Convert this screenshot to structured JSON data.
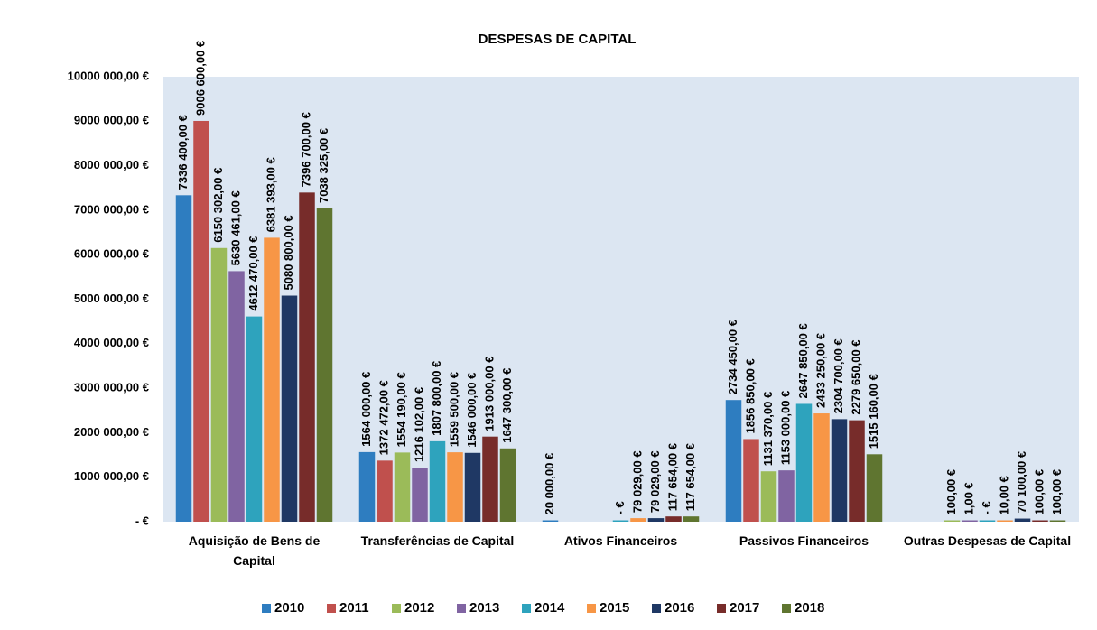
{
  "chart_data": {
    "type": "bar",
    "title": "DESPESAS DE CAPITAL",
    "categories": [
      "Aquisição de Bens de Capital",
      "Transferências de Capital",
      "Ativos Financeiros",
      "Passivos Financeiros",
      "Outras Despesas de Capital"
    ],
    "ylim": [
      0,
      10000000
    ],
    "yticks": [
      {
        "value": 0,
        "label": "- €"
      },
      {
        "value": 1000000,
        "label": "1000 000,00 €"
      },
      {
        "value": 2000000,
        "label": "2000 000,00 €"
      },
      {
        "value": 3000000,
        "label": "3000 000,00 €"
      },
      {
        "value": 4000000,
        "label": "4000 000,00 €"
      },
      {
        "value": 5000000,
        "label": "5000 000,00 €"
      },
      {
        "value": 6000000,
        "label": "6000 000,00 €"
      },
      {
        "value": 7000000,
        "label": "7000 000,00 €"
      },
      {
        "value": 8000000,
        "label": "8000 000,00 €"
      },
      {
        "value": 9000000,
        "label": "9000 000,00 €"
      },
      {
        "value": 10000000,
        "label": "10000 000,00 €"
      }
    ],
    "legend": "bottom",
    "series": [
      {
        "name": "2010",
        "color": "#2e7dc0",
        "values": [
          7336400,
          1564000,
          20000,
          2734450,
          null
        ],
        "value_labels": [
          "7336 400,00 €",
          "1564 000,00 €",
          "20 000,00 €",
          "2734 450,00 €",
          null
        ]
      },
      {
        "name": "2011",
        "color": "#c0504d",
        "values": [
          9006600,
          1372472,
          null,
          1856850,
          null
        ],
        "value_labels": [
          "9006 600,00 €",
          "1372 472,00 €",
          null,
          "1856 850,00 €",
          null
        ]
      },
      {
        "name": "2012",
        "color": "#9bbb59",
        "values": [
          6150302,
          1554190,
          null,
          1131370,
          100
        ],
        "value_labels": [
          "6150 302,00 €",
          "1554 190,00 €",
          null,
          "1131 370,00 €",
          "100,00 €"
        ]
      },
      {
        "name": "2013",
        "color": "#8064a2",
        "values": [
          5630461,
          1216102,
          null,
          1153000,
          1
        ],
        "value_labels": [
          "5630 461,00 €",
          "1216 102,00 €",
          null,
          "1153 000,00 €",
          "1,00 €"
        ]
      },
      {
        "name": "2014",
        "color": "#2ea3bd",
        "values": [
          4612470,
          1807800,
          0,
          2647850,
          0
        ],
        "value_labels": [
          "4612 470,00 €",
          "1807 800,00 €",
          "- €",
          "2647 850,00 €",
          "- €"
        ]
      },
      {
        "name": "2015",
        "color": "#f79646",
        "values": [
          6381393,
          1559500,
          79029,
          2433250,
          10
        ],
        "value_labels": [
          "6381 393,00 €",
          "1559 500,00 €",
          "79 029,00 €",
          "2433 250,00 €",
          "10,00 €"
        ]
      },
      {
        "name": "2016",
        "color": "#1f3864",
        "values": [
          5080800,
          1546000,
          79029,
          2304700,
          70100
        ],
        "value_labels": [
          "5080 800,00 €",
          "1546 000,00 €",
          "79 029,00 €",
          "2304 700,00 €",
          "70 100,00 €"
        ]
      },
      {
        "name": "2017",
        "color": "#772c2a",
        "values": [
          7396700,
          1913000,
          117654,
          2279650,
          100
        ],
        "value_labels": [
          "7396 700,00 €",
          "1913 000,00 €",
          "117 654,00 €",
          "2279 650,00 €",
          "100,00 €"
        ]
      },
      {
        "name": "2018",
        "color": "#5f7530",
        "values": [
          7038325,
          1647300,
          117654,
          1515160,
          100
        ],
        "value_labels": [
          "7038 325,00 €",
          "1647 300,00 €",
          "117 654,00 €",
          "1515 160,00 €",
          "100,00 €"
        ]
      }
    ]
  }
}
